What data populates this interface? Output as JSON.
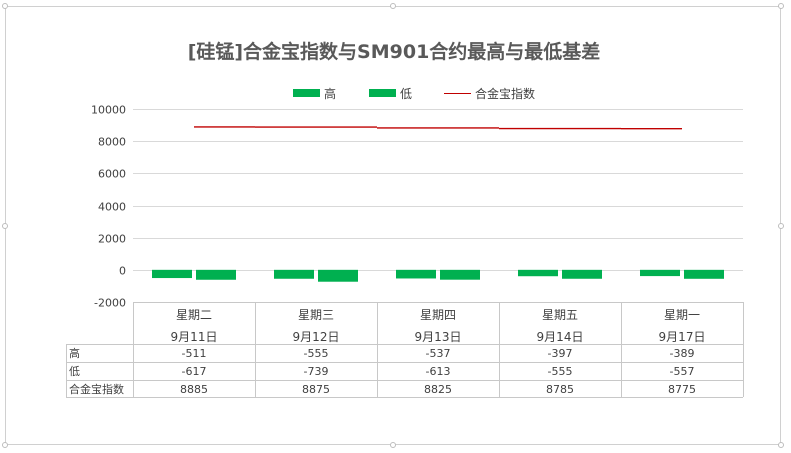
{
  "chart_data": {
    "type": "bar",
    "title": "[硅锰]合金宝指数与SM901合约最高与最低基差",
    "categories": [
      "星期二",
      "星期三",
      "星期四",
      "星期五",
      "星期一"
    ],
    "dates": [
      "9月11日",
      "9月12日",
      "9月13日",
      "9月14日",
      "9月17日"
    ],
    "series": [
      {
        "name": "高",
        "kind": "bar",
        "values": [
          -511,
          -555,
          -537,
          -397,
          -389
        ],
        "color": "#00b050"
      },
      {
        "name": "低",
        "kind": "bar",
        "values": [
          -617,
          -739,
          -613,
          -555,
          -557
        ],
        "color": "#00b050"
      },
      {
        "name": "合金宝指数",
        "kind": "line",
        "values": [
          8885,
          8875,
          8825,
          8785,
          8775
        ],
        "color": "#c00000"
      }
    ],
    "table_values": [
      [
        "-511",
        "-555",
        "-537",
        "-397",
        "-389"
      ],
      [
        "-617",
        "-739",
        "-613",
        "-555",
        "-557"
      ],
      [
        "8885",
        "8875",
        "8825",
        "8785",
        "8775"
      ]
    ],
    "ylim": [
      -2000,
      10000
    ],
    "yticks": [
      "10000",
      "8000",
      "6000",
      "4000",
      "2000",
      "0",
      "-2000"
    ],
    "grid": true,
    "legend_position": "top",
    "data_table": true
  }
}
